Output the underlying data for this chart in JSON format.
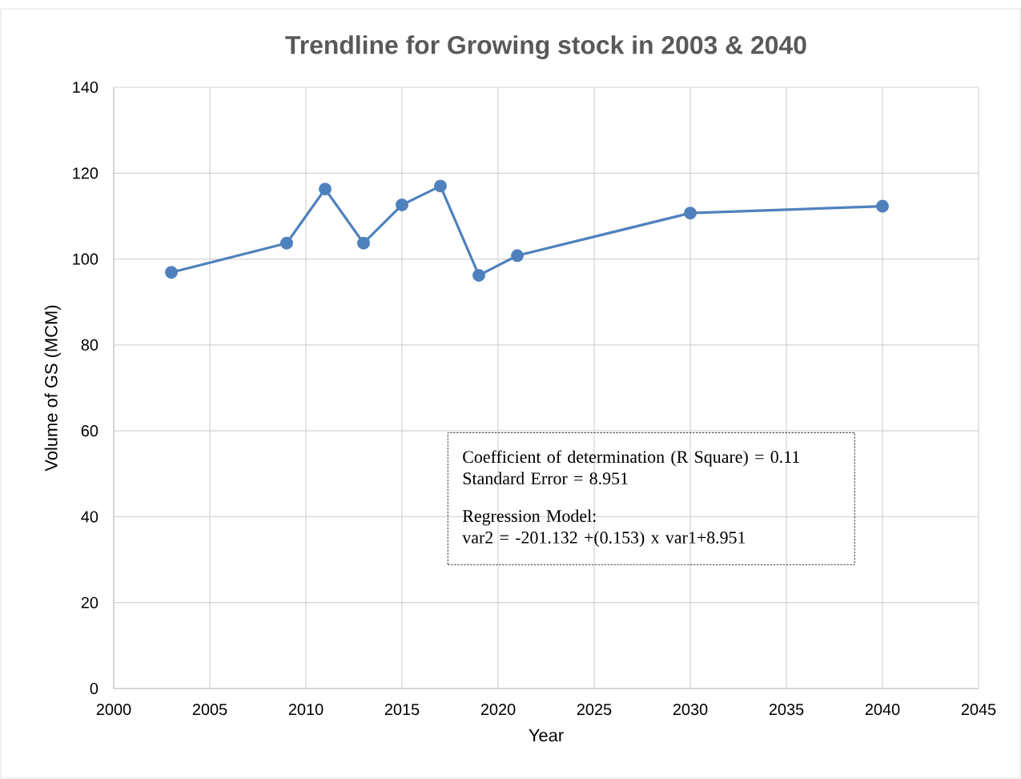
{
  "chart_data": {
    "type": "line",
    "title": "Trendline for Growing stock in 2003 & 2040",
    "xlabel": "Year",
    "ylabel": "Volume of GS (MCM)",
    "x": [
      2003,
      2009,
      2011,
      2013,
      2015,
      2017,
      2019,
      2021,
      2030,
      2040
    ],
    "series": [
      {
        "color": "#4f81bd",
        "values": [
          96.9,
          103.7,
          116.3,
          103.7,
          112.6,
          117.0,
          96.2,
          100.8,
          110.7,
          112.3
        ]
      }
    ],
    "xlim": [
      2000,
      2045
    ],
    "xticks": [
      2000,
      2005,
      2010,
      2015,
      2020,
      2025,
      2030,
      2035,
      2040,
      2045
    ],
    "ylim": [
      0,
      140
    ],
    "yticks": [
      0,
      20,
      40,
      60,
      80,
      100,
      120,
      140
    ],
    "grid": true,
    "marker": "circle",
    "line_style": "solid",
    "annotations": [
      "Coefficient of determination (R Square) = 0.11",
      "Standard Error = 8.951",
      "Regression Model:",
      "var2 = -201.132 +(0.153) x var1+8.951"
    ]
  }
}
